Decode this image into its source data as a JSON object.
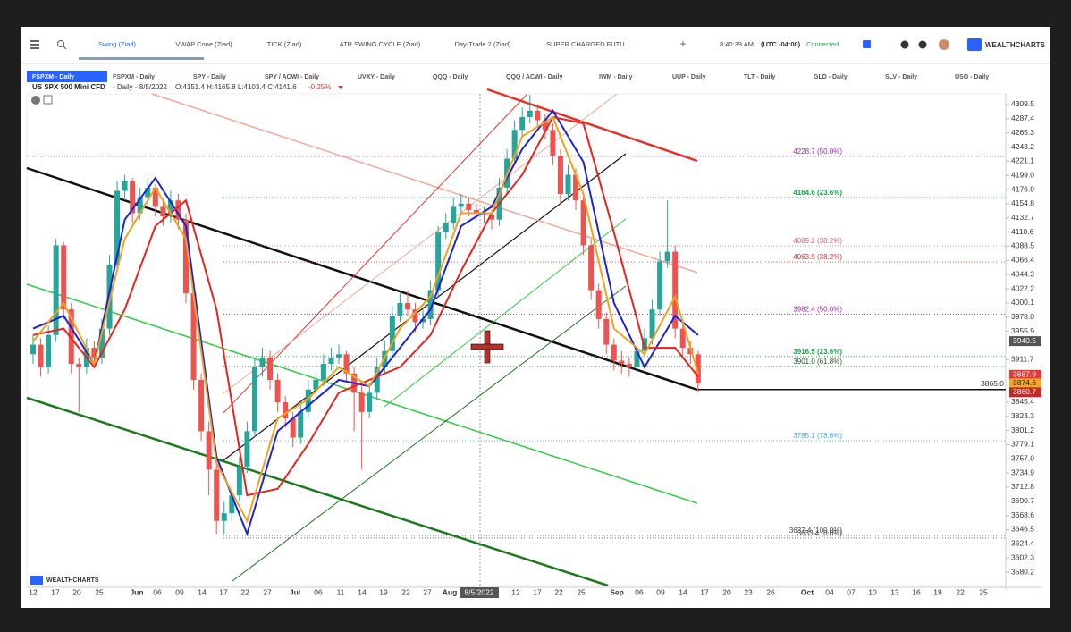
{
  "toolbar": {
    "tabs": [
      "Swing (Ziad)",
      "VWAP Cone (Ziad)",
      "TICK (Ziad)",
      "ATR SWING CYCLE (Ziad)",
      "Day-Trade 2 (Ziad)",
      "SUPER CHARGED FUTU..."
    ],
    "add": "+",
    "time": "8:40:39 AM",
    "timezone": "(UTC -04:00)",
    "status": "Connected",
    "logo": "WEALTHCHARTS"
  },
  "symbol_tabs": [
    "FSPXM - Daily",
    "FSPXM - Daily",
    "SPY - Daily",
    "SPY / ACWI - Daily",
    "UVXY - Daily",
    "QQQ - Daily",
    "QQQ / ACWI - Daily",
    "IWM - Daily",
    "UUP - Daily",
    "TLT - Daily",
    "GLD - Daily",
    "SLV - Daily",
    "USO - Daily"
  ],
  "info": {
    "symbol": "US SPX 500 Mini CFD",
    "period": "- Daily - 8/5/2022",
    "ohlc": "O:4151.4 H:4165.8 L:4103.4 C:4141.6",
    "change": "-0.25%"
  },
  "chart": {
    "type": "candlestick",
    "ylim": [
      3559.3,
      4326.2
    ],
    "yticks": [
      4309.5,
      4287.4,
      4265.3,
      4243.2,
      4221.1,
      {
        "value": 4199,
        "label": "4199.0"
      },
      4176.9,
      4154.8,
      4132.7,
      4110.6,
      4088.5,
      4066.4,
      4044.3,
      4022.2,
      4000.1,
      {
        "value": 3978,
        "label": "3978.0"
      },
      3955.9,
      3911.7,
      3845.4,
      3823.3,
      3801.2,
      3779.1,
      {
        "value": 3757,
        "label": "3757.0"
      },
      3734.9,
      3712.8,
      3690.7,
      3668.6,
      3646.5,
      3624.4,
      3602.3,
      3580.2
    ],
    "date_labels": [
      "12",
      "17",
      "20",
      "25",
      "Jun",
      "06",
      "09",
      "14",
      "17",
      "22",
      "27",
      "Jul",
      "06",
      "11",
      "14",
      "19",
      "22",
      "27",
      "Aug",
      "12",
      "17",
      "22",
      "25",
      "Sep",
      "06",
      "09",
      "14",
      "17",
      "20",
      "23",
      "26",
      "Oct",
      "04",
      "07",
      "10",
      "13",
      "16",
      "19",
      "22",
      "25"
    ],
    "crosshair_date": "8/5/2022",
    "up_color": "#26a69a",
    "down_color": "#ef5350",
    "candles": [
      [
        3920,
        3950,
        3905,
        3935
      ],
      [
        3935,
        3945,
        3885,
        3900
      ],
      [
        3900,
        3965,
        3890,
        3950
      ],
      [
        3950,
        4100,
        3940,
        4090
      ],
      [
        4090,
        4095,
        3975,
        3990
      ],
      [
        3990,
        4000,
        3890,
        3905
      ],
      [
        3905,
        3915,
        3830,
        3900
      ],
      [
        3900,
        3945,
        3890,
        3930
      ],
      [
        3930,
        3940,
        3900,
        3915
      ],
      [
        3915,
        3975,
        3905,
        3960
      ],
      [
        3960,
        4075,
        3950,
        4060
      ],
      [
        4060,
        4190,
        4050,
        4175
      ],
      [
        4175,
        4200,
        4160,
        4190
      ],
      [
        4190,
        4195,
        4125,
        4140
      ],
      [
        4140,
        4180,
        4130,
        4165
      ],
      [
        4165,
        4195,
        4150,
        4180
      ],
      [
        4180,
        4185,
        4135,
        4150
      ],
      [
        4150,
        4160,
        4120,
        4135
      ],
      [
        4135,
        4175,
        4125,
        4160
      ],
      [
        4160,
        4170,
        4115,
        4130
      ],
      [
        4130,
        4140,
        4000,
        4015
      ],
      [
        4015,
        4025,
        3865,
        3880
      ],
      [
        3880,
        3890,
        3785,
        3800
      ],
      [
        3800,
        3815,
        3700,
        3740
      ],
      [
        3740,
        3750,
        3640,
        3660
      ],
      [
        3660,
        3690,
        3640,
        3672
      ],
      [
        3672,
        3715,
        3660,
        3700
      ],
      [
        3700,
        3760,
        3690,
        3745
      ],
      [
        3745,
        3815,
        3735,
        3800
      ],
      [
        3800,
        3915,
        3790,
        3900
      ],
      [
        3900,
        3930,
        3885,
        3915
      ],
      [
        3915,
        3925,
        3865,
        3880
      ],
      [
        3880,
        3890,
        3830,
        3845
      ],
      [
        3845,
        3855,
        3805,
        3820
      ],
      [
        3820,
        3830,
        3775,
        3790
      ],
      [
        3790,
        3845,
        3780,
        3830
      ],
      [
        3830,
        3880,
        3820,
        3865
      ],
      [
        3865,
        3895,
        3855,
        3880
      ],
      [
        3880,
        3920,
        3870,
        3905
      ],
      [
        3905,
        3930,
        3895,
        3915
      ],
      [
        3915,
        3935,
        3905,
        3920
      ],
      [
        3920,
        3925,
        3875,
        3890
      ],
      [
        3890,
        3900,
        3800,
        3860
      ],
      [
        3860,
        3870,
        3740,
        3830
      ],
      [
        3830,
        3875,
        3820,
        3860
      ],
      [
        3860,
        3915,
        3850,
        3900
      ],
      [
        3900,
        3940,
        3890,
        3925
      ],
      [
        3925,
        3995,
        3915,
        3980
      ],
      [
        3980,
        4015,
        3970,
        4000
      ],
      [
        4000,
        4020,
        3980,
        3990
      ],
      [
        3990,
        4000,
        3955,
        3970
      ],
      [
        3970,
        3990,
        3960,
        3975
      ],
      [
        3975,
        4035,
        3965,
        4020
      ],
      [
        4020,
        4120,
        4010,
        4110
      ],
      [
        4110,
        4140,
        4100,
        4125
      ],
      [
        4125,
        4165,
        4115,
        4150
      ],
      [
        4150,
        4170,
        4140,
        4155
      ],
      [
        4155,
        4165,
        4135,
        4145
      ],
      [
        4145,
        4155,
        4130,
        4140
      ],
      [
        4140,
        4150,
        4125,
        4138
      ],
      [
        4138,
        4145,
        4115,
        4130
      ],
      [
        4130,
        4195,
        4120,
        4180
      ],
      [
        4180,
        4240,
        4170,
        4225
      ],
      [
        4225,
        4285,
        4215,
        4270
      ],
      [
        4270,
        4305,
        4260,
        4290
      ],
      [
        4290,
        4325,
        4280,
        4300
      ],
      [
        4300,
        4310,
        4275,
        4285
      ],
      [
        4285,
        4295,
        4255,
        4270
      ],
      [
        4270,
        4280,
        4215,
        4230
      ],
      [
        4230,
        4240,
        4155,
        4170
      ],
      [
        4170,
        4215,
        4160,
        4200
      ],
      [
        4200,
        4210,
        4145,
        4160
      ],
      [
        4160,
        4170,
        4075,
        4090
      ],
      [
        4090,
        4100,
        4005,
        4020
      ],
      [
        4020,
        4030,
        3960,
        3975
      ],
      [
        3975,
        3985,
        3920,
        3935
      ],
      [
        3935,
        3945,
        3895,
        3910
      ],
      [
        3910,
        3925,
        3890,
        3905
      ],
      [
        3905,
        3915,
        3885,
        3900
      ],
      [
        3900,
        3940,
        3890,
        3925
      ],
      [
        3925,
        3960,
        3915,
        3945
      ],
      [
        3945,
        4005,
        3935,
        3990
      ],
      [
        3990,
        4080,
        3980,
        4065
      ],
      [
        4065,
        4160,
        4055,
        4080
      ],
      [
        4080,
        4090,
        3945,
        3960
      ],
      [
        3960,
        3975,
        3915,
        3930
      ],
      [
        3930,
        3940,
        3905,
        3920
      ],
      [
        3920,
        3925,
        3860,
        3875
      ]
    ],
    "indicators": [
      {
        "color": "#1a23d6",
        "x": [
          0,
          4,
          8,
          12,
          16,
          20,
          24,
          28,
          32,
          36,
          40,
          44,
          48,
          52,
          56,
          60,
          64,
          68,
          72,
          76,
          80,
          84,
          87
        ],
        "values": [
          3960,
          3980,
          3905,
          4130,
          4195,
          4120,
          3760,
          3640,
          3800,
          3840,
          3880,
          3870,
          3930,
          3990,
          4120,
          4150,
          4240,
          4300,
          4220,
          4000,
          3900,
          3980,
          3950
        ]
      },
      {
        "color": "#e8231c",
        "x": [
          0,
          4,
          8,
          12,
          16,
          20,
          24,
          28,
          32,
          36,
          40,
          44,
          48,
          52,
          56,
          60,
          64,
          68,
          72,
          76,
          80,
          84,
          87
        ],
        "values": [
          3950,
          3960,
          3900,
          3990,
          4120,
          4160,
          3990,
          3700,
          3710,
          3780,
          3860,
          3880,
          3900,
          3950,
          4050,
          4140,
          4200,
          4290,
          4280,
          4110,
          3930,
          3930,
          3885
        ]
      },
      {
        "color": "#f0a21c",
        "x": [
          0,
          4,
          8,
          12,
          16,
          20,
          24,
          28,
          32,
          36,
          40,
          44,
          48,
          52,
          56,
          60,
          64,
          68,
          72,
          76,
          80,
          84,
          87
        ],
        "values": [
          3940,
          4000,
          3905,
          4100,
          4180,
          4100,
          3750,
          3660,
          3820,
          3850,
          3900,
          3870,
          3960,
          4010,
          4140,
          4140,
          4260,
          4290,
          4170,
          3960,
          3920,
          4010,
          3890
        ]
      }
    ],
    "fib_levels": [
      {
        "value": 4228.7,
        "label": "4228.7 (50.0%)",
        "color": "#9c27b0"
      },
      {
        "value": 4164.6,
        "label": "4164.6 (23.6%)",
        "color": "#16a34a"
      },
      {
        "value": 4089.2,
        "label": "4089.2 (38.2%)",
        "color": "#e0607e"
      },
      {
        "value": 4063.9,
        "label": "4063.9 (38.2%)",
        "color": "#d32f2f"
      },
      {
        "value": 3982.4,
        "label": "3982.4 (50.0%)",
        "color": "#9c27b0"
      },
      {
        "value": 3916.5,
        "label": "3916.5 (23.6%)",
        "color": "#16a34a"
      },
      {
        "value": 3901,
        "label": "3901.0 (61.8%)",
        "color": "#1b5e20"
      },
      {
        "value": 3785.1,
        "label": "3785.1 (78.6%)",
        "color": "#42a5f5"
      },
      {
        "value": 3637.4,
        "label": "3637.4 (100.0%)",
        "color": "#444"
      },
      {
        "value": 3633.4,
        "label": "3633.4 (0.0%)",
        "color": "#444"
      }
    ],
    "last_line": {
      "value": 3865,
      "label": "3865.0"
    },
    "badges": [
      {
        "value": 3940.5,
        "label": "3940.5",
        "color": "#555"
      },
      {
        "value": 3887.9,
        "label": "3887.9",
        "color": "#e53935"
      },
      {
        "value": 3874.6,
        "label": "3874.6",
        "color": "#f5a623"
      },
      {
        "value": 3860.7,
        "label": "3860.7",
        "color": "#c62828"
      }
    ],
    "watermark": "WEALTHCHARTS"
  }
}
